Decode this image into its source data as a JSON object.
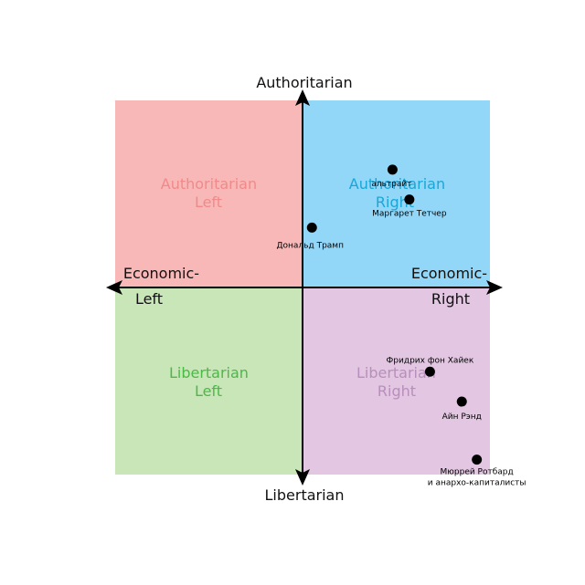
{
  "axes": {
    "top": "Authoritarian",
    "bottom": "Libertarian",
    "left": [
      "Economic-",
      "Left"
    ],
    "right": [
      "Economic-",
      "Right"
    ]
  },
  "quadrants": {
    "auth_left": {
      "lines": [
        "Authoritarian",
        "Left"
      ],
      "fill": "#f8b8b8",
      "text": "#f08a8a"
    },
    "auth_right": {
      "lines": [
        "Authoritarian",
        "Right"
      ],
      "fill": "#92d6f8",
      "text": "#1aa7d6"
    },
    "lib_left": {
      "lines": [
        "Libertarian",
        "Left"
      ],
      "fill": "#c8e6b8",
      "text": "#4cb848"
    },
    "lib_right": {
      "lines": [
        "Libertarian",
        "Right"
      ],
      "fill": "#e2c6e2",
      "text": "#b88ebc"
    }
  },
  "chart_data": {
    "type": "scatter",
    "xlim": [
      -10,
      10
    ],
    "ylim": [
      -10,
      10
    ],
    "points": [
      {
        "label": [
          "альтрайт"
        ],
        "x": 4.8,
        "y": 6.3
      },
      {
        "label": [
          "Маргарет Тетчер"
        ],
        "x": 5.7,
        "y": 4.7
      },
      {
        "label": [
          "Дональд Трамп"
        ],
        "x": 0.5,
        "y": 3.2
      },
      {
        "label": [
          "Фридрих фон Хайек"
        ],
        "x": 6.8,
        "y": -4.5
      },
      {
        "label": [
          "Айн Рэнд"
        ],
        "x": 8.5,
        "y": -6.1
      },
      {
        "label": [
          "Мюррей Ротбард",
          "и анархо-капиталисты"
        ],
        "x": 9.3,
        "y": -9.2
      }
    ]
  }
}
